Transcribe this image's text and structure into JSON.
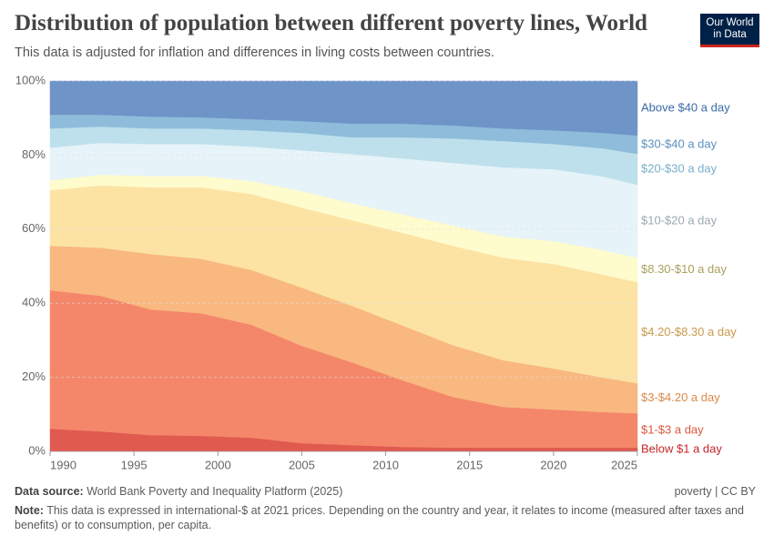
{
  "header": {
    "title": "Distribution of population between different poverty lines, World",
    "subtitle": "This data is adjusted for inflation and differences in living costs between countries.",
    "logo": [
      "Our World",
      "in Data"
    ]
  },
  "chart_data": {
    "type": "area",
    "stacked": true,
    "grid": true,
    "x": [
      1990,
      1993,
      1996,
      1999,
      2002,
      2005,
      2008,
      2011,
      2014,
      2017,
      2020,
      2023,
      2025
    ],
    "xlim": [
      1990,
      2025
    ],
    "xticks": [
      1990,
      1995,
      2000,
      2005,
      2010,
      2015,
      2020,
      2025
    ],
    "ylim": [
      0,
      100
    ],
    "yticks": [
      {
        "value": 0,
        "label": "0%"
      },
      {
        "value": 20,
        "label": "20%"
      },
      {
        "value": 40,
        "label": "40%"
      },
      {
        "value": 60,
        "label": "60%"
      },
      {
        "value": 80,
        "label": "80%"
      },
      {
        "value": 100,
        "label": "100%"
      }
    ],
    "series": [
      {
        "name": "Below $1 a day",
        "color": "#e05a50",
        "label_color": "#c2262b",
        "values": [
          6.1,
          5.4,
          4.4,
          4.2,
          3.7,
          2.2,
          1.7,
          1.2,
          1.0,
          1.0,
          1.0,
          1.0,
          1.0
        ]
      },
      {
        "name": "$1-$3 a day",
        "color": "#f4876a",
        "label_color": "#d9573e",
        "values": [
          37.4,
          36.6,
          33.9,
          33.1,
          30.5,
          26.3,
          22.3,
          18.0,
          13.7,
          11.0,
          10.3,
          9.6,
          9.3
        ]
      },
      {
        "name": "$3-$4.20 a day",
        "color": "#f9b880",
        "label_color": "#d98a48",
        "values": [
          12.0,
          13.0,
          15.0,
          14.7,
          14.8,
          15.7,
          15.3,
          14.8,
          14.0,
          12.6,
          11.1,
          9.3,
          8.1
        ]
      },
      {
        "name": "$4.20-$8.30 a day",
        "color": "#fce3a4",
        "label_color": "#c99a4c",
        "values": [
          15.0,
          16.8,
          18.0,
          19.3,
          20.5,
          21.6,
          23.1,
          25.0,
          26.8,
          27.7,
          28.2,
          27.8,
          27.3
        ]
      },
      {
        "name": "$8.30-$10 a day",
        "color": "#fefbcd",
        "label_color": "#a9a05e",
        "values": [
          2.7,
          2.9,
          3.1,
          3.1,
          3.5,
          4.5,
          4.6,
          5.0,
          5.5,
          5.7,
          6.2,
          6.6,
          6.6
        ]
      },
      {
        "name": "$10-$20 a day",
        "color": "#e6f3f9",
        "label_color": "#9aa9b0",
        "values": [
          8.8,
          8.6,
          8.6,
          8.6,
          9.3,
          11.0,
          13.3,
          15.1,
          16.9,
          18.7,
          19.4,
          19.9,
          19.7
        ]
      },
      {
        "name": "$20-$30 a day",
        "color": "#bde0ec",
        "label_color": "#7aaec8",
        "values": [
          5.2,
          4.4,
          4.2,
          4.2,
          4.4,
          4.7,
          4.5,
          5.7,
          6.6,
          7.1,
          6.8,
          7.6,
          8.3
        ]
      },
      {
        "name": "$30-$40 a day",
        "color": "#8fbcda",
        "label_color": "#5b8fc0",
        "values": [
          3.7,
          3.2,
          3.2,
          3.0,
          3.0,
          3.2,
          3.7,
          3.7,
          3.5,
          3.4,
          3.7,
          4.2,
          5.0
        ]
      },
      {
        "name": "Above $40 a day",
        "color": "#6e94c8",
        "label_color": "#3a6aa9",
        "values": [
          9.1,
          9.1,
          9.6,
          9.8,
          10.3,
          10.8,
          11.5,
          11.5,
          12.0,
          12.8,
          13.3,
          14.0,
          14.7
        ]
      }
    ]
  },
  "footer": {
    "source_label": "Data source:",
    "source": "World Bank Poverty and Inequality Platform (2025)",
    "license": "poverty | CC BY",
    "note_label": "Note:",
    "note": "This data is expressed in international-$ at 2021 prices. Depending on the country and year, it relates to income (measured after taxes and benefits) or to consumption, per capita."
  }
}
